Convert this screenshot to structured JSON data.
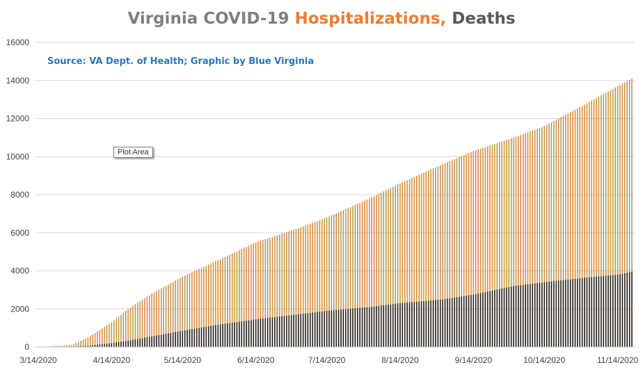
{
  "chart_data": {
    "type": "bar",
    "title_parts": [
      "Virginia COVID-19 ",
      "Hospitalizations,",
      " Deaths"
    ],
    "subtitle": "Source: VA Dept. of Health; Graphic by Blue Virginia",
    "tooltip": "Plot Area",
    "ylim": [
      0,
      16000
    ],
    "yticks": [
      0,
      2000,
      4000,
      6000,
      8000,
      10000,
      12000,
      14000,
      16000
    ],
    "xtick_labels": [
      "3/14/2020",
      "4/14/2020",
      "5/14/2020",
      "6/14/2020",
      "7/14/2020",
      "8/14/2020",
      "9/14/2020",
      "10/14/2020",
      "11/14/2020"
    ],
    "x_start": "3/14/2020",
    "x_end": "11/20/2020",
    "grid": true,
    "colors": {
      "hospitalizations": "#c98a3a",
      "deaths": "#1a1a1a",
      "title_main": "#7f7f7f",
      "title_hosp": "#ed7d31",
      "title_deaths": "#595959",
      "subtitle": "#2e75b6"
    },
    "series": [
      {
        "name": "Hospitalizations",
        "anchors": [
          [
            "3/14/2020",
            0
          ],
          [
            "3/28/2020",
            100
          ],
          [
            "4/4/2020",
            500
          ],
          [
            "4/14/2020",
            1300
          ],
          [
            "4/21/2020",
            2000
          ],
          [
            "5/1/2020",
            2800
          ],
          [
            "5/14/2020",
            3700
          ],
          [
            "5/28/2020",
            4500
          ],
          [
            "6/14/2020",
            5500
          ],
          [
            "7/1/2020",
            6200
          ],
          [
            "7/14/2020",
            6800
          ],
          [
            "8/1/2020",
            7800
          ],
          [
            "8/14/2020",
            8600
          ],
          [
            "9/1/2020",
            9600
          ],
          [
            "9/14/2020",
            10300
          ],
          [
            "10/1/2020",
            11000
          ],
          [
            "10/14/2020",
            11600
          ],
          [
            "11/1/2020",
            12800
          ],
          [
            "11/14/2020",
            13700
          ],
          [
            "11/20/2020",
            14100
          ]
        ]
      },
      {
        "name": "Deaths",
        "anchors": [
          [
            "3/14/2020",
            0
          ],
          [
            "3/28/2020",
            20
          ],
          [
            "4/4/2020",
            60
          ],
          [
            "4/14/2020",
            200
          ],
          [
            "4/21/2020",
            330
          ],
          [
            "5/1/2020",
            550
          ],
          [
            "5/14/2020",
            850
          ],
          [
            "5/28/2020",
            1150
          ],
          [
            "6/14/2020",
            1450
          ],
          [
            "7/1/2020",
            1700
          ],
          [
            "7/14/2020",
            1900
          ],
          [
            "8/1/2020",
            2100
          ],
          [
            "8/14/2020",
            2300
          ],
          [
            "9/1/2020",
            2500
          ],
          [
            "9/14/2020",
            2750
          ],
          [
            "10/1/2020",
            3200
          ],
          [
            "10/14/2020",
            3400
          ],
          [
            "11/1/2020",
            3650
          ],
          [
            "11/14/2020",
            3800
          ],
          [
            "11/20/2020",
            3950
          ]
        ]
      }
    ]
  }
}
